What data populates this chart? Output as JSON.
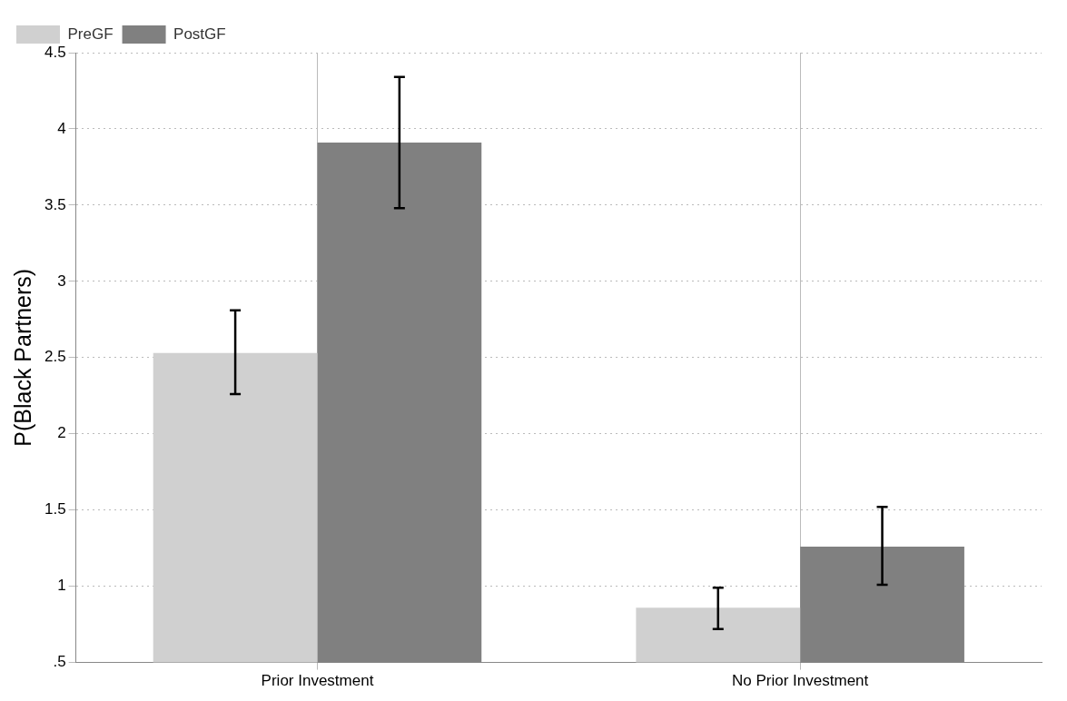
{
  "chart_data": {
    "type": "bar",
    "ylabel": "P(Black Partners)",
    "categories": [
      "Prior Investment",
      "No Prior Investment"
    ],
    "series": [
      {
        "name": "PreGF",
        "color": "#d0d0d0",
        "values": [
          2.53,
          0.86
        ],
        "errors": [
          [
            2.26,
            2.81
          ],
          [
            0.72,
            0.99
          ]
        ]
      },
      {
        "name": "PostGF",
        "color": "#808080",
        "values": [
          3.91,
          1.26
        ],
        "errors": [
          [
            3.48,
            4.34
          ],
          [
            1.01,
            1.52
          ]
        ]
      }
    ],
    "ylim": [
      0.5,
      4.5
    ],
    "yticks": [
      {
        "value": 0.5,
        "label": ".5"
      },
      1,
      1.5,
      2,
      2.5,
      3,
      3.5,
      4,
      4.5
    ],
    "grid": true,
    "legend": "top left"
  }
}
